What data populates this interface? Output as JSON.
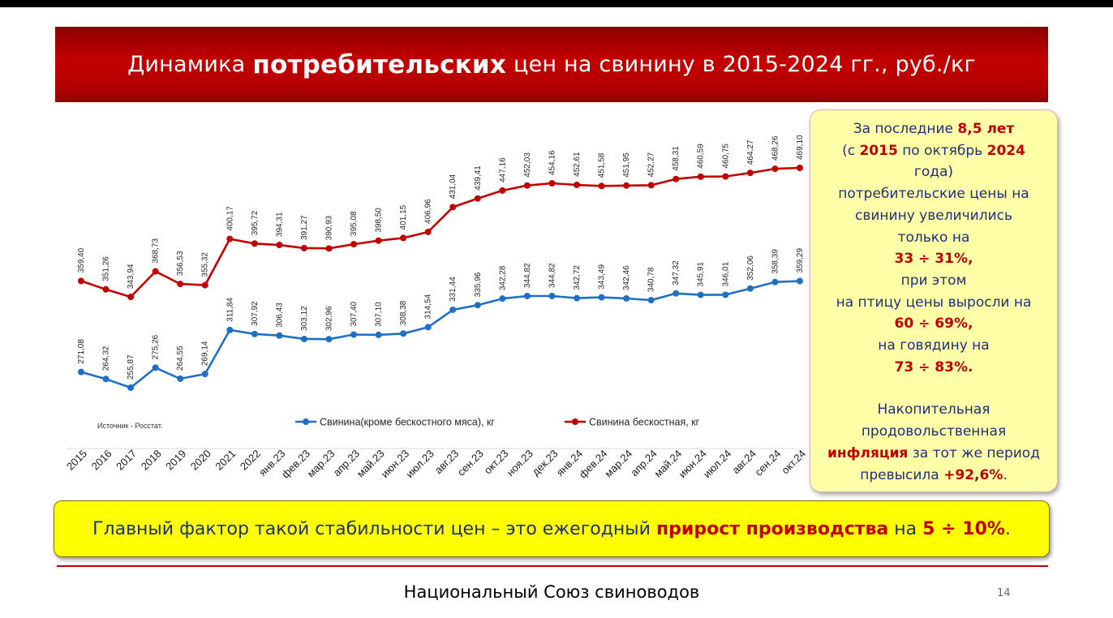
{
  "slide": {
    "title_pre": "Динамика",
    "title_bold": "потребительских",
    "title_post": "цен на свинину в 2015-2024 гг., руб./кг",
    "info": {
      "l1_pre": "За последние",
      "l1_hl": "8,5 лет",
      "l2_pre": "(с",
      "l2_hl1": "2015",
      "l2_mid": "по октябрь",
      "l2_hl2": "2024",
      "l3": "года)",
      "l4": "потребительские цены на",
      "l5": "свинину увеличились",
      "l6": "только на",
      "l7": "33 ÷ 31%,",
      "l8": "при этом",
      "l9": "на птицу цены выросли на",
      "l10": "60 ÷ 69%,",
      "l11": "на говядину на",
      "l12": "73 ÷ 83%.",
      "l13": "Накопительная",
      "l14": "продовольственная",
      "l15_hl": "инфляция",
      "l15_post": "за тот же период",
      "l16_pre": "превысила",
      "l16_hl": "+92,6%",
      "l16_post": "."
    },
    "bottom": {
      "pre": "Главный фактор такой стабильности цен – это ежегодный",
      "hl1": "прирост производства",
      "mid": "на",
      "hl2": "5 ÷ 10%",
      "post": "."
    },
    "footer": "Национальный Союз свиноводов",
    "page_number": "14"
  },
  "chart_data": {
    "type": "line",
    "categories": [
      "2015",
      "2016",
      "2017",
      "2018",
      "2019",
      "2020",
      "2021",
      "2022",
      "янв.23",
      "фев.23",
      "мар.23",
      "апр.23",
      "май.23",
      "июн.23",
      "июл.23",
      "авг.23",
      "сен.23",
      "окт.23",
      "ноя.23",
      "дек.23",
      "янв.24",
      "фев.24",
      "мар.24",
      "апр.24",
      "май.24",
      "июн.24",
      "июл.24",
      "авг.24",
      "сен.24",
      "окт.24"
    ],
    "series": [
      {
        "name": "Свинина(кроме бескостного мяса), кг",
        "color": "#1f6fc5",
        "values": [
          271.08,
          264.32,
          255.87,
          275.26,
          264.55,
          269.14,
          311.84,
          307.92,
          306.43,
          303.12,
          302.96,
          307.4,
          307.1,
          308.38,
          314.54,
          331.44,
          335.96,
          342.28,
          344.82,
          344.82,
          342.72,
          343.49,
          342.46,
          340.78,
          347.32,
          345.91,
          346.01,
          352.06,
          358.39,
          359.29
        ],
        "labels": [
          "271,08",
          "264,32",
          "255,87",
          "275,26",
          "264,55",
          "269,14",
          "311,84",
          "307,92",
          "306,43",
          "303,12",
          "302,96",
          "307,40",
          "307,10",
          "308,38",
          "314,54",
          "331,44",
          "335,96",
          "342,28",
          "344,82",
          "344,82",
          "342,72",
          "343,49",
          "342,46",
          "340,78",
          "347,32",
          "345,91",
          "346,01",
          "352,06",
          "358,39",
          "359,29"
        ]
      },
      {
        "name": "Свинина бескостная, кг",
        "color": "#c00000",
        "values": [
          359.4,
          351.26,
          343.94,
          368.73,
          356.53,
          355.32,
          400.17,
          395.72,
          394.31,
          391.27,
          390.93,
          395.08,
          398.5,
          401.15,
          406.96,
          431.04,
          439.41,
          447.16,
          452.03,
          454.16,
          452.61,
          451.58,
          451.95,
          452.27,
          458.31,
          460.59,
          460.75,
          464.27,
          468.26,
          469.1
        ],
        "labels": [
          "359,40",
          "351,26",
          "343,94",
          "368,73",
          "356,53",
          "355,32",
          "400,17",
          "395,72",
          "394,31",
          "391,27",
          "390,93",
          "395,08",
          "398,50",
          "401,15",
          "406,96",
          "431,04",
          "439,41",
          "447,16",
          "452,03",
          "454,16",
          "452,61",
          "451,58",
          "451,95",
          "452,27",
          "458,31",
          "460,59",
          "460,75",
          "464,27",
          "468,26",
          "469,10"
        ]
      }
    ],
    "source_note": "Источник - Росстат.",
    "legend_position": "bottom",
    "grid": false
  }
}
